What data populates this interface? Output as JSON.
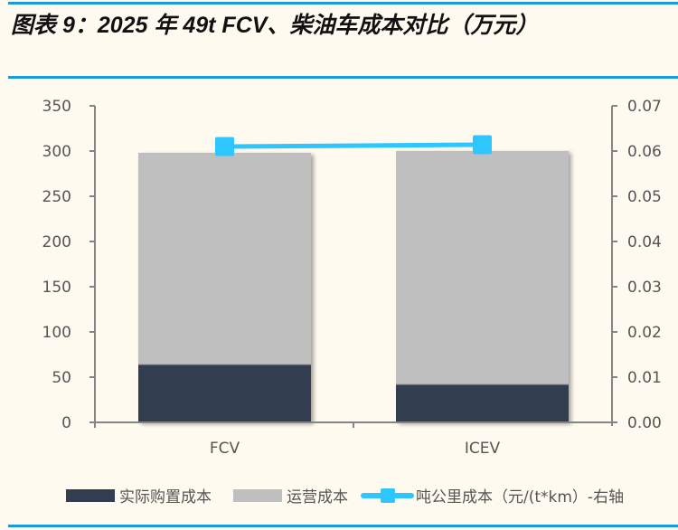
{
  "title": "图表 9：2025 年 49t FCV、柴油车成本对比（万元）",
  "colors": {
    "purchase": "#333d4f",
    "operating": "#bfbfbf",
    "line": "#2ec6ff",
    "rule": "#1a9ad6",
    "axis": "#858585",
    "background": "#fffaf0"
  },
  "axes": {
    "left_ticks": [
      "0",
      "50",
      "100",
      "150",
      "200",
      "250",
      "300",
      "350"
    ],
    "right_ticks": [
      "0.00",
      "0.01",
      "0.02",
      "0.03",
      "0.04",
      "0.05",
      "0.06",
      "0.07"
    ]
  },
  "legend": {
    "purchase": "实际购置成本",
    "operating": "运营成本",
    "per_ton_km": "吨公里成本（元/(t*km）-右轴"
  },
  "chart_data": {
    "type": "bar",
    "stacked": true,
    "title": "图表 9：2025 年 49t FCV、柴油车成本对比（万元）",
    "categories": [
      "FCV",
      "ICEV"
    ],
    "series": [
      {
        "name": "实际购置成本",
        "type": "bar",
        "axis": "left",
        "values": [
          64,
          42
        ]
      },
      {
        "name": "运营成本",
        "type": "bar",
        "axis": "left",
        "values": [
          234,
          258
        ]
      },
      {
        "name": "吨公里成本（元/(t*km）-右轴",
        "type": "line",
        "axis": "right",
        "values": [
          0.061,
          0.0614
        ]
      }
    ],
    "totals": [
      298,
      300
    ],
    "xlabel": "",
    "ylabel": "",
    "ylim": [
      0,
      350
    ],
    "y2lim": [
      0,
      0.07
    ],
    "grid": false,
    "legend_position": "bottom"
  }
}
